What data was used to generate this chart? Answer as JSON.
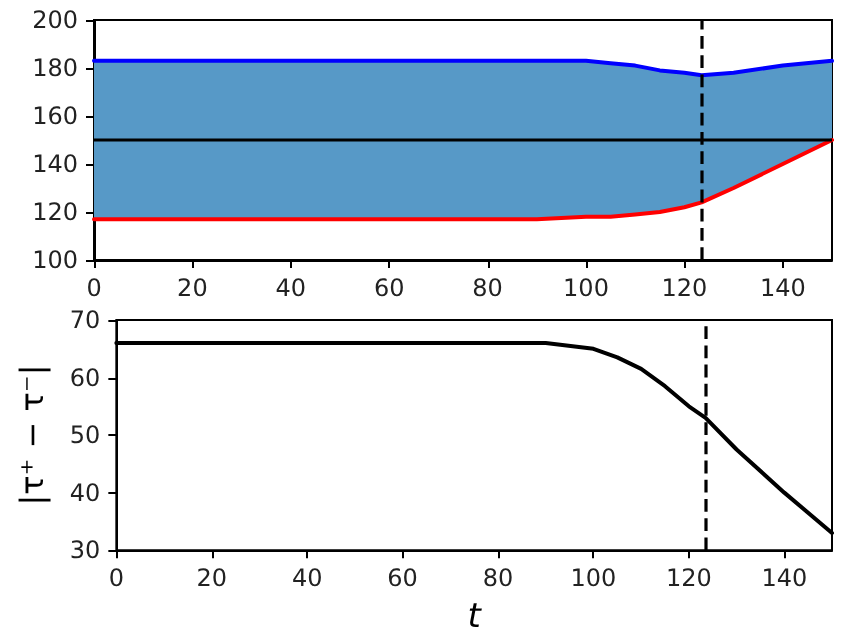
{
  "chart_data": [
    {
      "type": "line",
      "x": [
        0,
        20,
        40,
        60,
        80,
        90,
        100,
        105,
        110,
        115,
        120,
        123.5,
        130,
        140,
        150
      ],
      "xlim": [
        0,
        150
      ],
      "xticks": [
        0,
        20,
        40,
        60,
        80,
        100,
        120,
        140
      ],
      "ylim": [
        100,
        200
      ],
      "yticks": [
        100,
        120,
        140,
        160,
        180,
        200
      ],
      "grid": false,
      "series": [
        {
          "color": "#0000ff",
          "values": [
            183,
            183,
            183,
            183,
            183,
            183,
            183,
            182,
            181,
            179,
            178,
            177,
            178,
            181,
            183
          ],
          "lower": [
            117,
            117,
            117,
            117,
            117,
            117,
            118,
            118,
            119,
            120,
            122,
            124,
            130,
            140,
            150
          ],
          "upper": [
            183,
            183,
            183,
            183,
            183,
            183,
            183,
            182,
            181,
            179,
            178,
            177,
            178,
            181,
            183
          ]
        },
        {
          "color": "#ff0000",
          "values": [
            117,
            117,
            117,
            117,
            117,
            117,
            118,
            118,
            119,
            120,
            122,
            124,
            130,
            140,
            150
          ]
        }
      ],
      "ref_lines": [
        {
          "axis": "y",
          "value": 150,
          "color": "#000000",
          "line_style": "solid"
        },
        {
          "axis": "x",
          "value": 123.5,
          "color": "#000000",
          "line_style": "dashed"
        }
      ]
    },
    {
      "type": "line",
      "x": [
        0,
        20,
        40,
        60,
        80,
        90,
        100,
        105,
        110,
        115,
        120,
        123.5,
        130,
        140,
        150
      ],
      "xlim": [
        0,
        150
      ],
      "xticks": [
        0,
        20,
        40,
        60,
        80,
        100,
        120,
        140
      ],
      "ylim": [
        30,
        70
      ],
      "yticks": [
        30,
        40,
        50,
        60,
        70
      ],
      "grid": false,
      "xlabel": "t",
      "ylabel": "|τ⁺ − τ⁻|",
      "series": [
        {
          "color": "#000000",
          "values": [
            66,
            66,
            66,
            66,
            66,
            66,
            65,
            63.5,
            61.5,
            58.5,
            55,
            53,
            47.5,
            40,
            33
          ]
        }
      ],
      "ref_lines": [
        {
          "axis": "x",
          "value": 123.5,
          "color": "#000000",
          "line_style": "dashed"
        }
      ]
    }
  ]
}
